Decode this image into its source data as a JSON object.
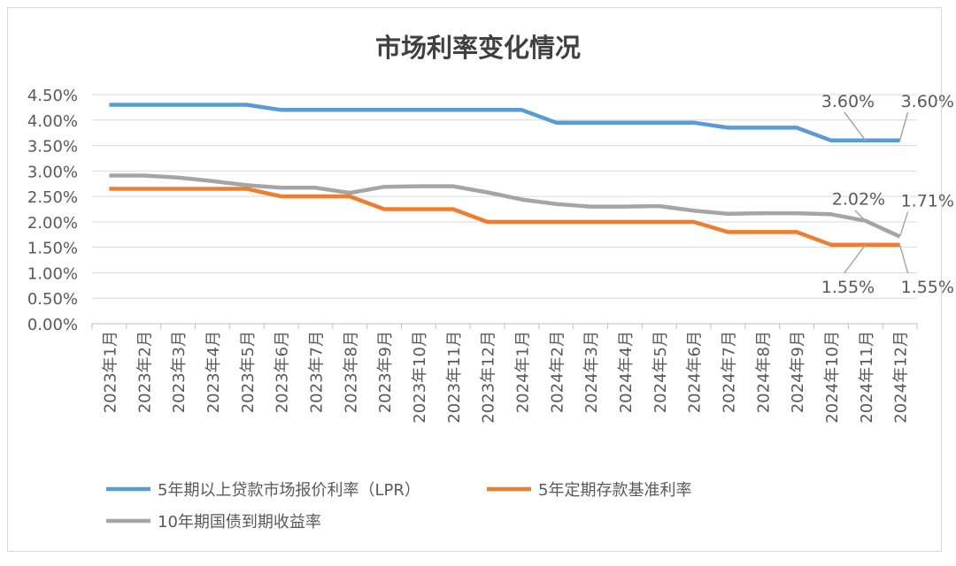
{
  "chart_data": {
    "type": "line",
    "title": "市场利率变化情况",
    "categories": [
      "2023年1月",
      "2023年2月",
      "2023年3月",
      "2023年4月",
      "2023年5月",
      "2023年6月",
      "2023年7月",
      "2023年8月",
      "2023年9月",
      "2023年10月",
      "2023年11月",
      "2023年12月",
      "2024年1月",
      "2024年2月",
      "2024年3月",
      "2024年4月",
      "2024年5月",
      "2024年6月",
      "2024年7月",
      "2024年8月",
      "2024年9月",
      "2024年10月",
      "2024年11月",
      "2024年12月"
    ],
    "ylim": [
      0,
      4.5
    ],
    "yticks": [
      "0.00%",
      "0.50%",
      "1.00%",
      "1.50%",
      "2.00%",
      "2.50%",
      "3.00%",
      "3.50%",
      "4.00%",
      "4.50%"
    ],
    "grid": true,
    "legend_position": "bottom",
    "series": [
      {
        "name": "5年期以上贷款市场报价利率（LPR）",
        "color": "#5b9bd5",
        "values": [
          4.3,
          4.3,
          4.3,
          4.3,
          4.3,
          4.2,
          4.2,
          4.2,
          4.2,
          4.2,
          4.2,
          4.2,
          4.2,
          3.95,
          3.95,
          3.95,
          3.95,
          3.95,
          3.85,
          3.85,
          3.85,
          3.6,
          3.6,
          3.6
        ],
        "labels": [
          {
            "index": 22,
            "text": "3.60%"
          },
          {
            "index": 23,
            "text": "3.60%"
          }
        ]
      },
      {
        "name": "5年定期存款基准利率",
        "color": "#ed7d31",
        "values": [
          2.65,
          2.65,
          2.65,
          2.65,
          2.65,
          2.5,
          2.5,
          2.5,
          2.25,
          2.25,
          2.25,
          2.0,
          2.0,
          2.0,
          2.0,
          2.0,
          2.0,
          2.0,
          1.8,
          1.8,
          1.8,
          1.55,
          1.55,
          1.55
        ],
        "labels": [
          {
            "index": 22,
            "text": "1.55%"
          },
          {
            "index": 23,
            "text": "1.55%"
          }
        ]
      },
      {
        "name": "10年期国债到期收益率",
        "color": "#a5a5a5",
        "values": [
          2.91,
          2.91,
          2.87,
          2.8,
          2.72,
          2.67,
          2.67,
          2.57,
          2.69,
          2.7,
          2.7,
          2.58,
          2.44,
          2.35,
          2.3,
          2.3,
          2.31,
          2.22,
          2.16,
          2.17,
          2.17,
          2.15,
          2.02,
          1.71
        ],
        "labels": [
          {
            "index": 22,
            "text": "2.02%"
          },
          {
            "index": 23,
            "text": "1.71%"
          }
        ]
      }
    ]
  }
}
